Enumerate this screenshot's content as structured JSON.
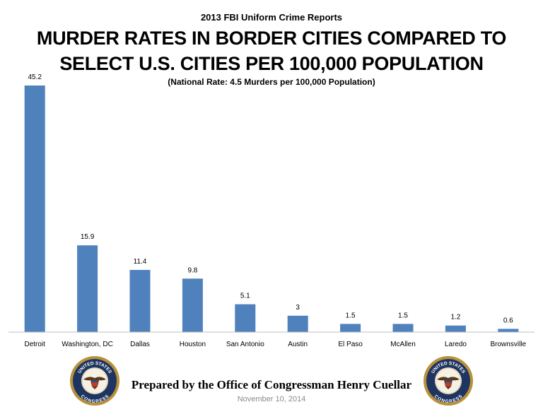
{
  "header": {
    "supertitle": "2013 FBI Uniform Crime Reports",
    "title_line1": "MURDER RATES IN BORDER CITIES COMPARED TO",
    "title_line2": "SELECT U.S. CITIES PER 100,000 POPULATION",
    "subtitle": "(National Rate: 4.5 Murders per 100,000 Population)"
  },
  "chart_data": {
    "type": "bar",
    "categories": [
      "Detroit",
      "Washington, DC",
      "Dallas",
      "Houston",
      "San Antonio",
      "Austin",
      "El Paso",
      "McAllen",
      "Laredo",
      "Brownsville"
    ],
    "values": [
      45.2,
      15.9,
      11.4,
      9.8,
      5.1,
      3,
      1.5,
      1.5,
      1.2,
      0.6
    ],
    "data_labels": [
      "45.2",
      "15.9",
      "11.4",
      "9.8",
      "5.1",
      "3",
      "1.5",
      "1.5",
      "1.2",
      "0.6"
    ],
    "bar_color": "#4f81bd",
    "ylim": [
      0,
      45.2
    ],
    "grid": false,
    "legend": "none"
  },
  "footer": {
    "prepared_by": "Prepared by the Office of Congressman Henry Cuellar",
    "date": "November 10, 2014",
    "seal_text_top": "UNITED STATES",
    "seal_text_bottom": "CONGRESS"
  }
}
